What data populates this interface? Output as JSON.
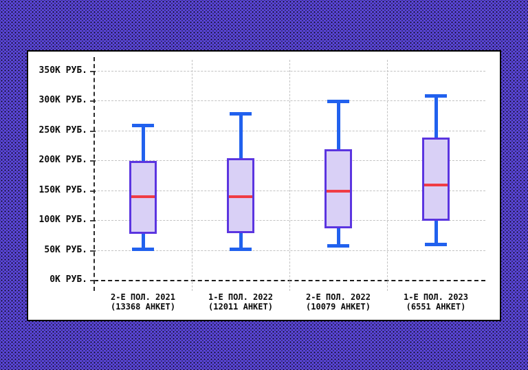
{
  "background": {
    "color": "#5a46da",
    "dot_color": "#0e0b16"
  },
  "panel": {
    "background": "#ffffff",
    "border_color": "#000000"
  },
  "chart_data": {
    "type": "boxplot",
    "title": "",
    "xlabel": "",
    "ylabel": "",
    "ylim": [
      0,
      350
    ],
    "grid": true,
    "y_tick_values": [
      350,
      300,
      250,
      200,
      150,
      100,
      50,
      0
    ],
    "y_tick_labels": [
      "350К РУБ.",
      "300К РУБ.",
      "250К РУБ.",
      "200К РУБ.",
      "150К РУБ.",
      "100К РУБ.",
      "50К РУБ.",
      "0К РУБ."
    ],
    "categories": [
      {
        "label_line1": "2-Е ПОЛ. 2021",
        "label_line2": "(13368 АНКЕТ)",
        "survey_count": 13368,
        "low": 52,
        "q1": 78,
        "median": 140,
        "q3": 200,
        "high": 260
      },
      {
        "label_line1": "1-Е ПОЛ. 2022",
        "label_line2": "(12011 АНКЕТ)",
        "survey_count": 12011,
        "low": 52,
        "q1": 79,
        "median": 140,
        "q3": 205,
        "high": 280
      },
      {
        "label_line1": "2-Е ПОЛ. 2022",
        "label_line2": "(10079 АНКЕТ)",
        "survey_count": 10079,
        "low": 57,
        "q1": 87,
        "median": 150,
        "q3": 220,
        "high": 300
      },
      {
        "label_line1": "1-Е ПОЛ. 2023",
        "label_line2": "(6551 АНКЕТ)",
        "survey_count": 6551,
        "low": 60,
        "q1": 100,
        "median": 160,
        "q3": 240,
        "high": 310
      }
    ],
    "colors": {
      "box_fill": "#d9d0f6",
      "box_border": "#5b35e0",
      "median": "#f03c45",
      "whisker": "#2161ee",
      "gridline": "#c2c2c2",
      "axis": "#1b1b1b"
    }
  }
}
